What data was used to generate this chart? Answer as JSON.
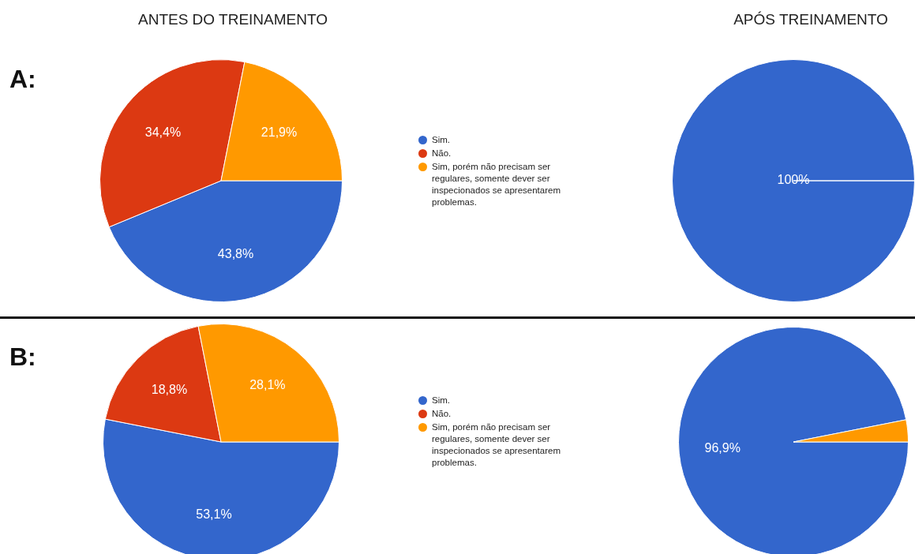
{
  "chart_data": [
    {
      "type": "pie",
      "title": "ANTES DO TREINAMENTO",
      "annotations": [
        "A:"
      ],
      "categories": [
        "Sim.",
        "Não.",
        "Sim, porém não precisam ser regulares, somente dever ser inspecionados se apresentarem problemas."
      ],
      "values": [
        43.8,
        34.4,
        21.9
      ],
      "colors": [
        "#3366cc",
        "#dc3912",
        "#ff9900"
      ],
      "value_labels": [
        "43,8%",
        "34,4%",
        "21,9%"
      ],
      "legend": "right"
    },
    {
      "type": "pie",
      "title": "APÓS TREINAMENTO",
      "categories": [
        null,
        null,
        null
      ],
      "values": [
        100,
        0,
        0
      ],
      "colors": [
        "#3366cc",
        "#dc3912",
        "#ff9900"
      ],
      "value_labels": [
        "100%",
        null,
        null
      ]
    },
    {
      "type": "pie",
      "annotations": [
        "B:"
      ],
      "categories": [
        "Sim.",
        "Não.",
        "Sim, porém não precisam ser regulares, somente dever ser inspecionados se apresentarem problemas."
      ],
      "values": [
        53.1,
        18.8,
        28.1
      ],
      "colors": [
        "#3366cc",
        "#dc3912",
        "#ff9900"
      ],
      "value_labels": [
        "53,1%",
        "18,8%",
        "28,1%"
      ],
      "legend": "right"
    },
    {
      "type": "pie",
      "categories": [
        null,
        null,
        null
      ],
      "values": [
        96.9,
        0,
        3.1
      ],
      "colors": [
        "#3366cc",
        "#dc3912",
        "#ff9900"
      ],
      "value_labels": [
        "96,9%",
        null,
        null
      ]
    }
  ]
}
